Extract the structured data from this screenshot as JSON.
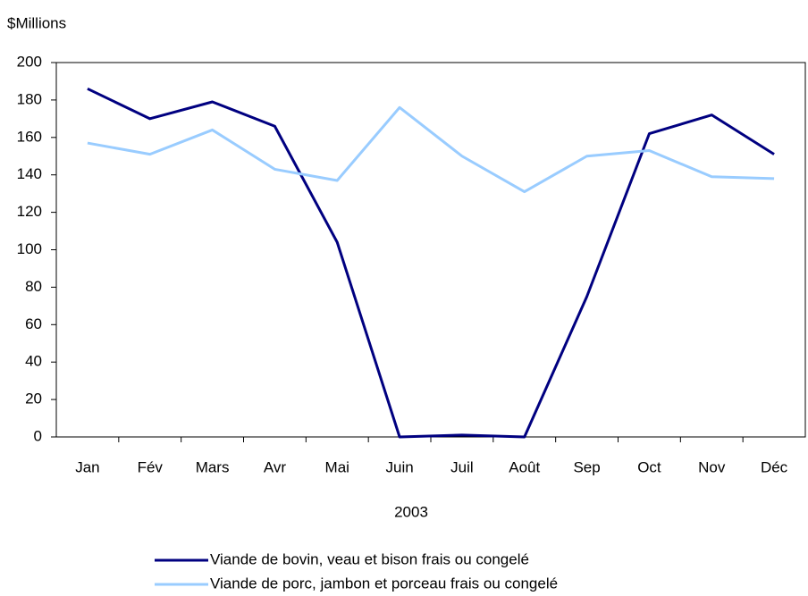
{
  "chart_data": {
    "type": "line",
    "y_label": "$Millions",
    "x_label": "2003",
    "categories": [
      "Jan",
      "Fév",
      "Mars",
      "Avr",
      "Mai",
      "Juin",
      "Juil",
      "Août",
      "Sep",
      "Oct",
      "Nov",
      "Déc"
    ],
    "series": [
      {
        "name": "Viande de bovin, veau et bison frais ou congelé",
        "color": "#000080",
        "values": [
          186,
          170,
          179,
          166,
          104,
          0,
          1,
          0,
          75,
          162,
          172,
          151
        ]
      },
      {
        "name": "Viande de porc, jambon et porceau frais ou congelé",
        "color": "#99ccff",
        "values": [
          157,
          151,
          164,
          143,
          137,
          176,
          150,
          131,
          150,
          153,
          139,
          138
        ]
      }
    ],
    "ylim": [
      0,
      200
    ],
    "yticks": [
      0,
      20,
      40,
      60,
      80,
      100,
      120,
      140,
      160,
      180,
      200
    ],
    "grid": false,
    "legend": "bottom"
  }
}
